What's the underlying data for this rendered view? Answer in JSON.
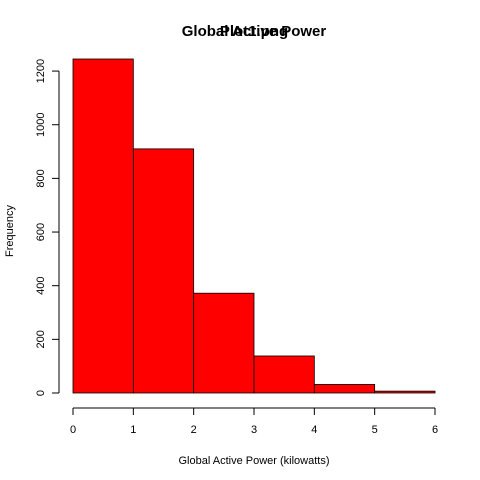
{
  "chart_data": {
    "type": "bar",
    "title": "Global Active Power",
    "overlay_title": "Plot1.png",
    "xlabel": "Global Active Power (kilowatts)",
    "ylabel": "Frequency",
    "bins": [
      {
        "x0": 0,
        "x1": 1,
        "value": 1245
      },
      {
        "x0": 1,
        "x1": 2,
        "value": 910
      },
      {
        "x0": 2,
        "x1": 3,
        "value": 372
      },
      {
        "x0": 3,
        "x1": 4,
        "value": 138
      },
      {
        "x0": 4,
        "x1": 5,
        "value": 32
      },
      {
        "x0": 5,
        "x1": 6,
        "value": 7
      }
    ],
    "xlim": [
      0,
      6
    ],
    "ylim": [
      0,
      1245
    ],
    "x_ticks": [
      "0",
      "1",
      "2",
      "3",
      "4",
      "5",
      "6"
    ],
    "y_ticks": [
      "0",
      "200",
      "400",
      "600",
      "800",
      "1000",
      "1200"
    ],
    "bar_color": "#ff0000",
    "grid": false,
    "legend": "none"
  }
}
